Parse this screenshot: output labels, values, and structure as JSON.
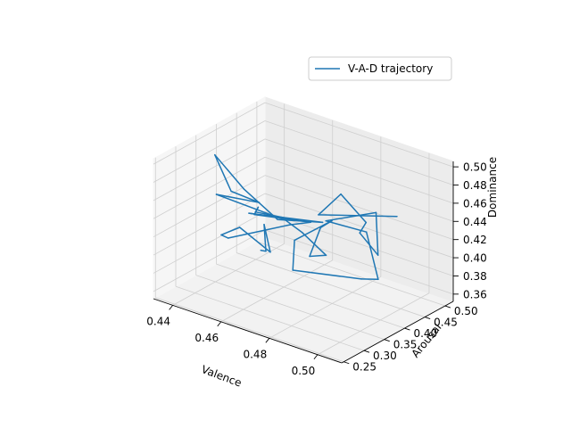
{
  "chart_data": {
    "type": "line",
    "projection": "3d",
    "xlabel": "Valence",
    "ylabel": "Arousal",
    "zlabel": "Dominance",
    "x_ticks": [
      "0.44",
      "0.46",
      "0.48",
      "0.50"
    ],
    "y_ticks": [
      "0.25",
      "0.30",
      "0.35",
      "0.40",
      "0.45",
      "0.50"
    ],
    "z_ticks": [
      "0.36",
      "0.38",
      "0.40",
      "0.42",
      "0.44",
      "0.46",
      "0.48",
      "0.50"
    ],
    "legend": {
      "placement": "upper-right",
      "entries": [
        "V-A-D trajectory"
      ]
    },
    "grid": true,
    "series": [
      {
        "name": "V-A-D trajectory",
        "color": "#1f77b4",
        "points": [
          {
            "valence": 0.44,
            "arousal": 0.462,
            "dominance": 0.359
          },
          {
            "valence": 0.448,
            "arousal": 0.427,
            "dominance": 0.374
          },
          {
            "valence": 0.436,
            "arousal": 0.494,
            "dominance": 0.376
          },
          {
            "valence": 0.45,
            "arousal": 0.426,
            "dominance": 0.375
          },
          {
            "valence": 0.437,
            "arousal": 0.428,
            "dominance": 0.39
          },
          {
            "valence": 0.448,
            "arousal": 0.317,
            "dominance": 0.419
          },
          {
            "valence": 0.45,
            "arousal": 0.322,
            "dominance": 0.416
          },
          {
            "valence": 0.463,
            "arousal": 0.397,
            "dominance": 0.424
          },
          {
            "valence": 0.46,
            "arousal": 0.466,
            "dominance": 0.407
          },
          {
            "valence": 0.458,
            "arousal": 0.339,
            "dominance": 0.445
          },
          {
            "valence": 0.448,
            "arousal": 0.408,
            "dominance": 0.427
          },
          {
            "valence": 0.463,
            "arousal": 0.312,
            "dominance": 0.459
          },
          {
            "valence": 0.466,
            "arousal": 0.402,
            "dominance": 0.43
          },
          {
            "valence": 0.464,
            "arousal": 0.29,
            "dominance": 0.464
          },
          {
            "valence": 0.469,
            "arousal": 0.442,
            "dominance": 0.421
          },
          {
            "valence": 0.473,
            "arousal": 0.307,
            "dominance": 0.461
          },
          {
            "valence": 0.454,
            "arousal": 0.337,
            "dominance": 0.47
          },
          {
            "valence": 0.443,
            "arousal": 0.331,
            "dominance": 0.499
          },
          {
            "valence": 0.459,
            "arousal": 0.276,
            "dominance": 0.487
          },
          {
            "valence": 0.455,
            "arousal": 0.369,
            "dominance": 0.448
          },
          {
            "valence": 0.452,
            "arousal": 0.281,
            "dominance": 0.476
          },
          {
            "valence": 0.465,
            "arousal": 0.375,
            "dominance": 0.436
          },
          {
            "valence": 0.469,
            "arousal": 0.392,
            "dominance": 0.422
          },
          {
            "valence": 0.478,
            "arousal": 0.397,
            "dominance": 0.404
          },
          {
            "valence": 0.473,
            "arousal": 0.386,
            "dominance": 0.401
          },
          {
            "valence": 0.473,
            "arousal": 0.413,
            "dominance": 0.426
          },
          {
            "valence": 0.474,
            "arousal": 0.435,
            "dominance": 0.429
          },
          {
            "valence": 0.476,
            "arousal": 0.331,
            "dominance": 0.435
          },
          {
            "valence": 0.481,
            "arousal": 0.297,
            "dominance": 0.415
          },
          {
            "valence": 0.482,
            "arousal": 0.46,
            "dominance": 0.366
          },
          {
            "valence": 0.489,
            "arousal": 0.46,
            "dominance": 0.372
          },
          {
            "valence": 0.491,
            "arousal": 0.419,
            "dominance": 0.436
          },
          {
            "valence": 0.494,
            "arousal": 0.301,
            "dominance": 0.48
          },
          {
            "valence": 0.495,
            "arousal": 0.419,
            "dominance": 0.461
          },
          {
            "valence": 0.498,
            "arousal": 0.406,
            "dominance": 0.42
          },
          {
            "valence": 0.499,
            "arousal": 0.355,
            "dominance": 0.458
          },
          {
            "valence": 0.508,
            "arousal": 0.317,
            "dominance": 0.487
          },
          {
            "valence": 0.488,
            "arousal": 0.374,
            "dominance": 0.486
          },
          {
            "valence": 0.499,
            "arousal": 0.253,
            "dominance": 0.503
          },
          {
            "valence": 0.503,
            "arousal": 0.423,
            "dominance": 0.463
          }
        ]
      }
    ]
  }
}
